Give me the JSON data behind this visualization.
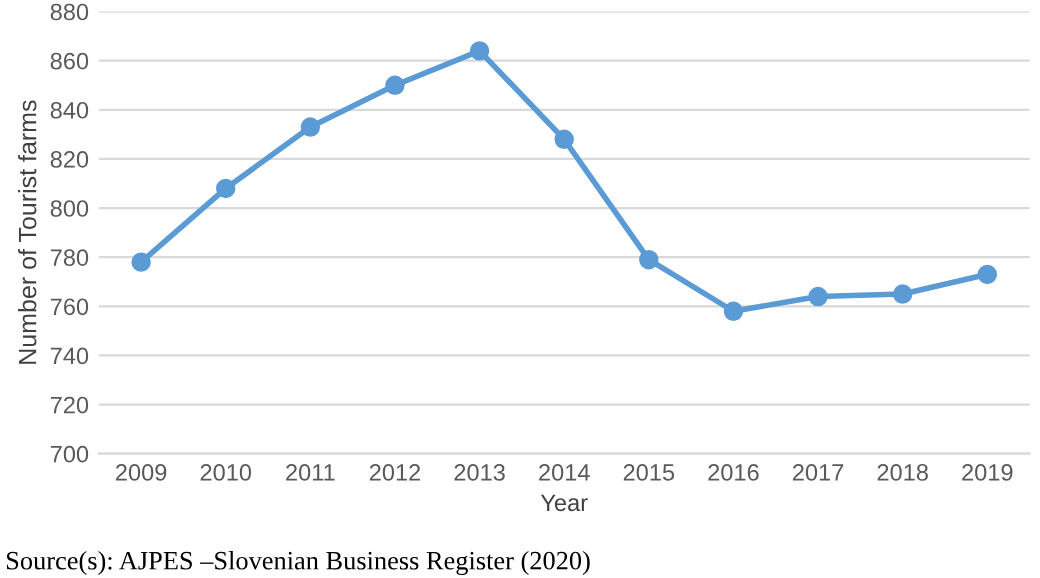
{
  "chart_data": {
    "type": "line",
    "xlabel": "Year",
    "ylabel": "Number of Tourist farms",
    "categories": [
      "2009",
      "2010",
      "2011",
      "2012",
      "2013",
      "2014",
      "2015",
      "2016",
      "2017",
      "2018",
      "2019"
    ],
    "series": [
      {
        "color": "#5b9bd5",
        "values": [
          778,
          808,
          833,
          850,
          864,
          828,
          779,
          758,
          764,
          765,
          773
        ]
      }
    ],
    "ylim": [
      700,
      880
    ],
    "yticks": [
      700,
      720,
      740,
      760,
      780,
      800,
      820,
      840,
      860,
      880
    ],
    "grid": "y",
    "marker": "circle",
    "line_style": "solid",
    "annotations": [
      "Source(s): AJPES –Slovenian Business Register (2020)"
    ]
  }
}
